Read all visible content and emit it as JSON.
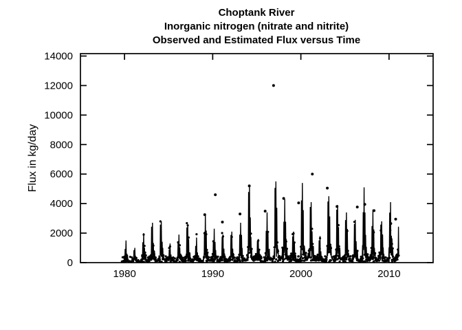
{
  "chart_data": {
    "type": "line",
    "title_lines": [
      "Choptank River",
      "Inorganic nitrogen (nitrate and nitrite)",
      "Observed and Estimated Flux versus Time"
    ],
    "ylabel": "Flux in kg/day",
    "xlabel": "",
    "xlim": [
      1975,
      2015
    ],
    "ylim": [
      0,
      14000
    ],
    "x_ticks": [
      1980,
      1990,
      2000,
      2010
    ],
    "y_ticks": [
      0,
      2000,
      4000,
      6000,
      8000,
      10000,
      12000,
      14000
    ],
    "grid": false,
    "legend": "none",
    "colors": {
      "foreground": "#000000",
      "background": "#ffffff"
    },
    "data_start_year": 1979.62,
    "data_end_year": 2011.1,
    "series": [
      {
        "name": "Estimated daily flux",
        "type": "line",
        "annual_peaks": [
          [
            1979,
            900
          ],
          [
            1980,
            1500
          ],
          [
            1981,
            1000
          ],
          [
            1982,
            2000
          ],
          [
            1983,
            2700
          ],
          [
            1984,
            2800
          ],
          [
            1985,
            1300
          ],
          [
            1986,
            1900
          ],
          [
            1987,
            2600
          ],
          [
            1988,
            1700
          ],
          [
            1989,
            3300
          ],
          [
            1990,
            2300
          ],
          [
            1991,
            1900
          ],
          [
            1992,
            2100
          ],
          [
            1993,
            2700
          ],
          [
            1994,
            5200
          ],
          [
            1995,
            1600
          ],
          [
            1996,
            3400
          ],
          [
            1997,
            5500
          ],
          [
            1998,
            4300
          ],
          [
            1999,
            2100
          ],
          [
            2000,
            5400
          ],
          [
            2001,
            4100
          ],
          [
            2002,
            1800
          ],
          [
            2003,
            4500
          ],
          [
            2004,
            3900
          ],
          [
            2005,
            3400
          ],
          [
            2006,
            2900
          ],
          [
            2007,
            5100
          ],
          [
            2008,
            3600
          ],
          [
            2009,
            2800
          ],
          [
            2010,
            4100
          ],
          [
            2011,
            3300
          ]
        ]
      },
      {
        "name": "Observed flux",
        "type": "scatter",
        "outlier_points": [
          [
            1989.1,
            3250
          ],
          [
            1990.3,
            4600
          ],
          [
            1991.1,
            2750
          ],
          [
            1993.1,
            3300
          ],
          [
            1994.15,
            5200
          ],
          [
            1995.95,
            3490
          ],
          [
            1996.9,
            12000
          ],
          [
            1998.05,
            4350
          ],
          [
            1999.75,
            4050
          ],
          [
            2001.3,
            6000
          ],
          [
            2003.0,
            5050
          ],
          [
            2004.1,
            3800
          ],
          [
            2006.4,
            3770
          ],
          [
            2007.25,
            3950
          ],
          [
            2008.3,
            3520
          ],
          [
            2010.2,
            2650
          ],
          [
            2010.75,
            2950
          ]
        ]
      }
    ],
    "seasonal_shape": {
      "offsets": [
        0.0,
        0.035,
        0.07,
        0.1,
        0.14,
        0.17,
        0.205,
        0.24,
        0.27,
        0.305,
        0.34,
        0.38,
        0.42,
        0.46,
        0.52,
        0.58,
        0.64,
        0.7,
        0.76,
        0.82,
        0.87,
        0.91,
        0.955
      ],
      "multipliers": [
        0.2,
        0.08,
        0.85,
        0.15,
        0.45,
        1.0,
        0.25,
        0.12,
        0.55,
        0.15,
        0.3,
        0.1,
        0.22,
        0.07,
        0.05,
        0.09,
        0.04,
        0.06,
        0.04,
        0.1,
        0.05,
        0.14,
        0.07
      ]
    }
  }
}
